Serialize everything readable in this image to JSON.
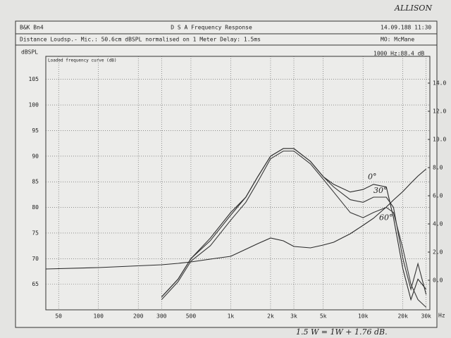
{
  "chart_data": {
    "type": "line",
    "title": "D S A    Frequency Response",
    "subtitle": "Distance Loudsp.- Mic.: 50.6cm dBSPL normalised on 1 Meter  Delay: 1.5ms",
    "annotations": [
      "B&K Bn4",
      "14.09.188 11:30",
      "MO: McMane",
      "1000 Hz:88.4 dB",
      "ALLISON",
      "Loaded frequency curve (dB)",
      "1.5 W = 1W + 1.76 dB."
    ],
    "y_label": "dBSPL",
    "x_label": "Hz",
    "x_scale": "log",
    "grid": true,
    "x": [
      40,
      100,
      300,
      400,
      500,
      700,
      1000,
      1300,
      1600,
      2000,
      2500,
      3000,
      4000,
      5000,
      6000,
      8000,
      10000,
      12000,
      15000,
      17000,
      20000,
      23000,
      26000,
      30000
    ],
    "xlim": [
      40,
      32000
    ],
    "xticks": [
      50,
      100,
      200,
      300,
      500,
      {
        "value": 1000,
        "label": "1k"
      },
      {
        "value": 2000,
        "label": "2k"
      },
      {
        "value": 3000,
        "label": "3k"
      },
      {
        "value": 5000,
        "label": "5k"
      },
      {
        "value": 10000,
        "label": "10k"
      },
      {
        "value": 20000,
        "label": "20k"
      },
      {
        "value": 30000,
        "label": "30k"
      }
    ],
    "ylim": [
      60,
      109.5
    ],
    "yticks": [
      65,
      70,
      75,
      80,
      85,
      90,
      95,
      100,
      105
    ],
    "y2lim": [
      -2.1,
      15.9
    ],
    "y2ticks": [
      {
        "value": 0,
        "label": "0.0"
      },
      {
        "value": 2,
        "label": "2.0"
      },
      {
        "value": 4,
        "label": "4.0"
      },
      {
        "value": 6,
        "label": "6.0"
      },
      {
        "value": 8,
        "label": "8.0"
      },
      {
        "value": 10,
        "label": "10.0"
      },
      {
        "value": 12,
        "label": "12.0"
      },
      {
        "value": 14,
        "label": "14.0"
      }
    ],
    "series": [
      {
        "name": "0°",
        "color": "#2a2a2a",
        "values": [
          null,
          null,
          62.5,
          66,
          70,
          74,
          79,
          82,
          86,
          90,
          91.5,
          91.5,
          89,
          86,
          84.5,
          83,
          83.5,
          84.5,
          84,
          78,
          68,
          62,
          66,
          64
        ]
      },
      {
        "name": "30°",
        "color": "#333333",
        "values": [
          null,
          null,
          62.5,
          66,
          70,
          73.5,
          78.5,
          82,
          86,
          90,
          91.5,
          91.5,
          89,
          86,
          84,
          81.5,
          81,
          82,
          82,
          80,
          70,
          64,
          69,
          63
        ]
      },
      {
        "name": "60°",
        "color": "#3a3a3a",
        "values": [
          null,
          null,
          62,
          65.5,
          69.5,
          72.5,
          77.5,
          81,
          85,
          89.5,
          91,
          91,
          88.5,
          85.5,
          83,
          79,
          78,
          79,
          80,
          79,
          72,
          65,
          62,
          60.5
        ]
      },
      {
        "color": "#2a2a2a",
        "axis": "y2",
        "values": [
          0.8,
          0.9,
          1.1,
          1.2,
          1.3,
          1.5,
          1.7,
          2.2,
          2.6,
          3.0,
          2.8,
          2.4,
          2.3,
          2.5,
          2.7,
          3.3,
          3.9,
          4.4,
          5.2,
          5.7,
          6.3,
          6.9,
          7.4,
          7.9
        ]
      }
    ]
  }
}
